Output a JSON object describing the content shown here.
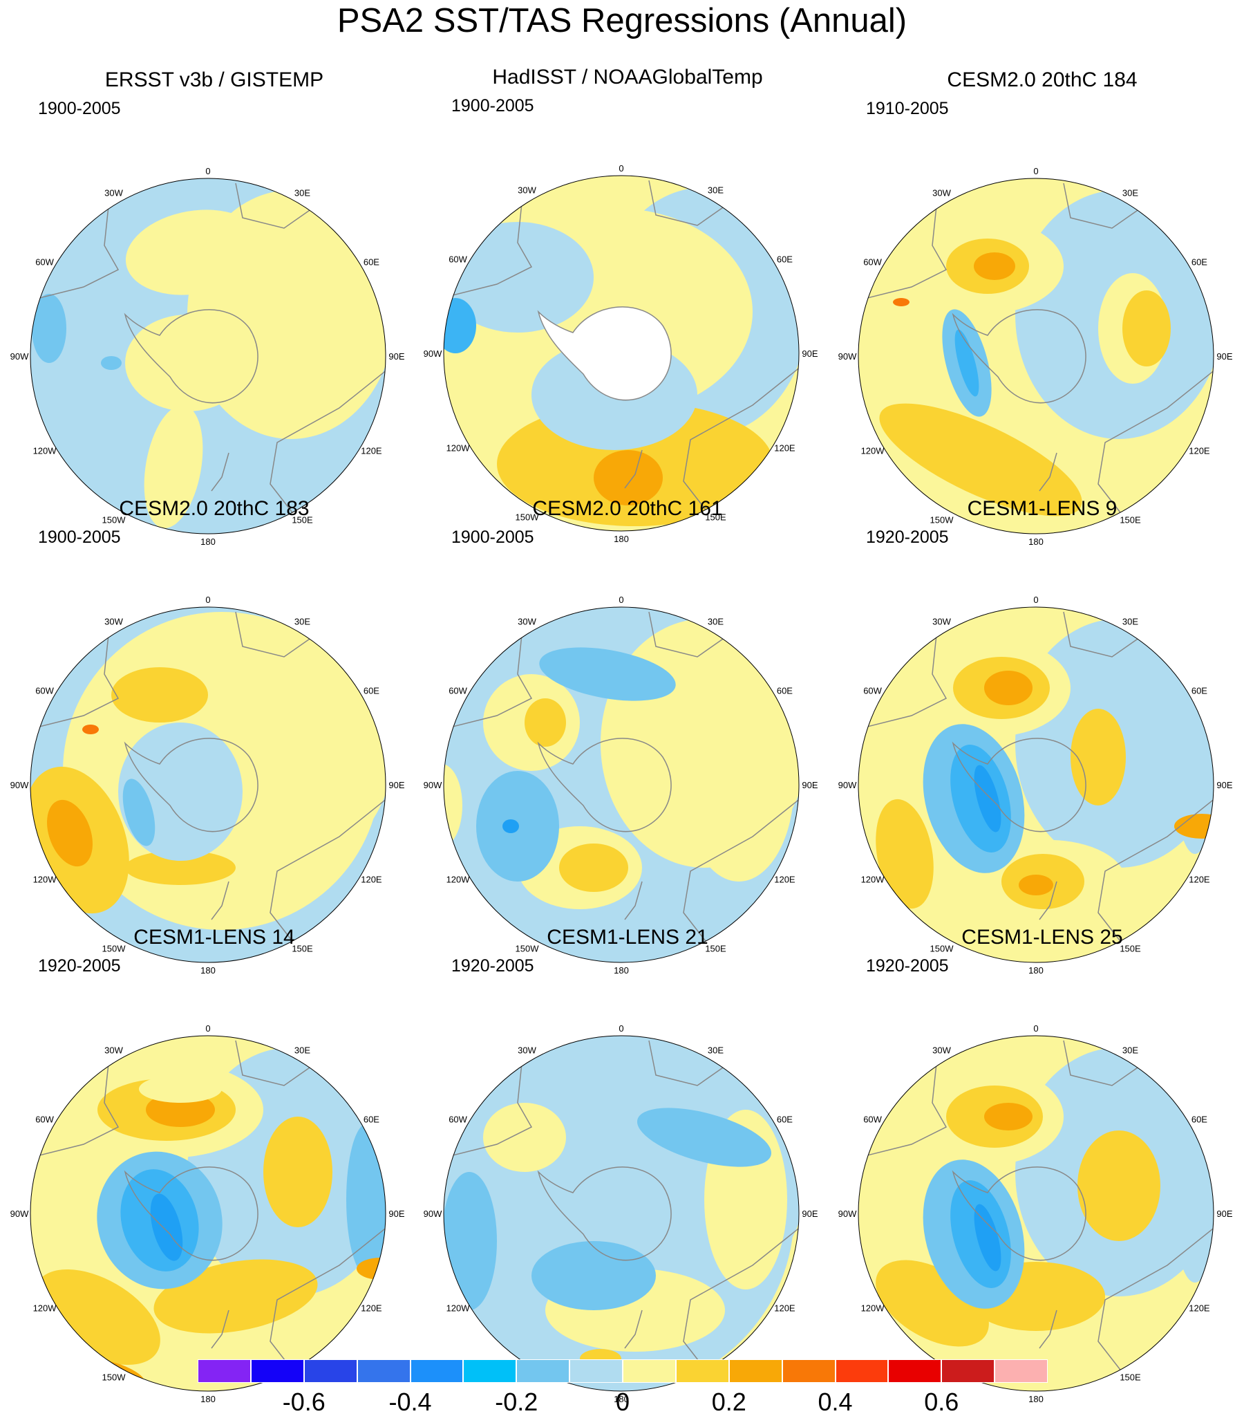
{
  "title": "PSA2 SST/TAS Regressions (Annual)",
  "longitude_labels": [
    "0",
    "30E",
    "60E",
    "90E",
    "120E",
    "150E",
    "180",
    "150W",
    "120W",
    "90W",
    "60W",
    "30W"
  ],
  "colors": {
    "neg_0.1": "#b0dcf0",
    "neg_0.2": "#73c6ef",
    "neg_0.3": "#3cb4f4",
    "neg_0.4": "#1fa0f4",
    "pos_0.1": "#fbf69a",
    "pos_0.2": "#fad332",
    "pos_0.3": "#f8a807",
    "pos_0.4": "#f87807",
    "land": "#ffffff",
    "coast": "#888888"
  },
  "panels": [
    {
      "title": "ERSST v3b / GISTEMP",
      "period": "1900-2005"
    },
    {
      "title": "HadISST / NOAAGlobalTemp",
      "period": "1900-2005"
    },
    {
      "title": "CESM2.0 20thC 184",
      "period": "1910-2005"
    },
    {
      "title": "CESM2.0 20thC 183",
      "period": "1900-2005"
    },
    {
      "title": "CESM2.0 20thC 161",
      "period": "1900-2005"
    },
    {
      "title": "CESM1-LENS 9",
      "period": "1920-2005"
    },
    {
      "title": "CESM1-LENS 14",
      "period": "1920-2005"
    },
    {
      "title": "CESM1-LENS 21",
      "period": "1920-2005"
    },
    {
      "title": "CESM1-LENS 25",
      "period": "1920-2005"
    }
  ],
  "colorbar": {
    "colors": [
      "#8424f4",
      "#1402f8",
      "#2844e8",
      "#3474ec",
      "#1c90fa",
      "#00c0f8",
      "#73c6ef",
      "#b0dcf0",
      "#fbf69a",
      "#fad332",
      "#f8a807",
      "#f87807",
      "#fc3c0c",
      "#e80000",
      "#cc1c1c",
      "#fcb0b0"
    ],
    "labels": [
      "-0.6",
      "-0.4",
      "-0.2",
      "0",
      "0.2",
      "0.4",
      "0.6"
    ]
  }
}
